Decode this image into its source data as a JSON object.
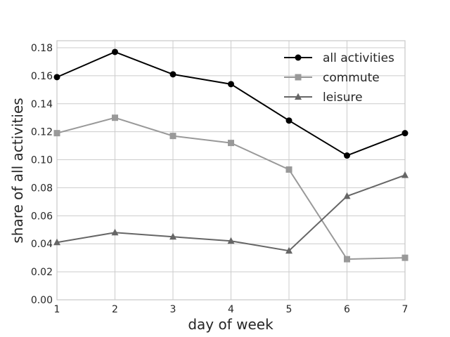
{
  "chart_data": {
    "type": "line",
    "title": "",
    "xlabel": "day of week",
    "ylabel": "share of all activities",
    "x": [
      1,
      2,
      3,
      4,
      5,
      6,
      7
    ],
    "xlim": [
      1,
      7
    ],
    "ylim": [
      0.0,
      0.185
    ],
    "xticks": [
      "1",
      "2",
      "3",
      "4",
      "5",
      "6",
      "7"
    ],
    "yticks": [
      "0.00",
      "0.02",
      "0.04",
      "0.06",
      "0.08",
      "0.10",
      "0.12",
      "0.14",
      "0.16",
      "0.18"
    ],
    "grid": true,
    "legend_position": "top-right",
    "series": [
      {
        "name": "all activities",
        "color": "#000000",
        "marker": "circle",
        "values": [
          0.159,
          0.177,
          0.161,
          0.154,
          0.128,
          0.103,
          0.119
        ]
      },
      {
        "name": "commute",
        "color": "#999999",
        "marker": "square",
        "values": [
          0.119,
          0.13,
          0.117,
          0.112,
          0.093,
          0.029,
          0.03
        ]
      },
      {
        "name": "leisure",
        "color": "#666666",
        "marker": "triangle",
        "values": [
          0.041,
          0.048,
          0.045,
          0.042,
          0.035,
          0.074,
          0.089
        ]
      }
    ]
  }
}
